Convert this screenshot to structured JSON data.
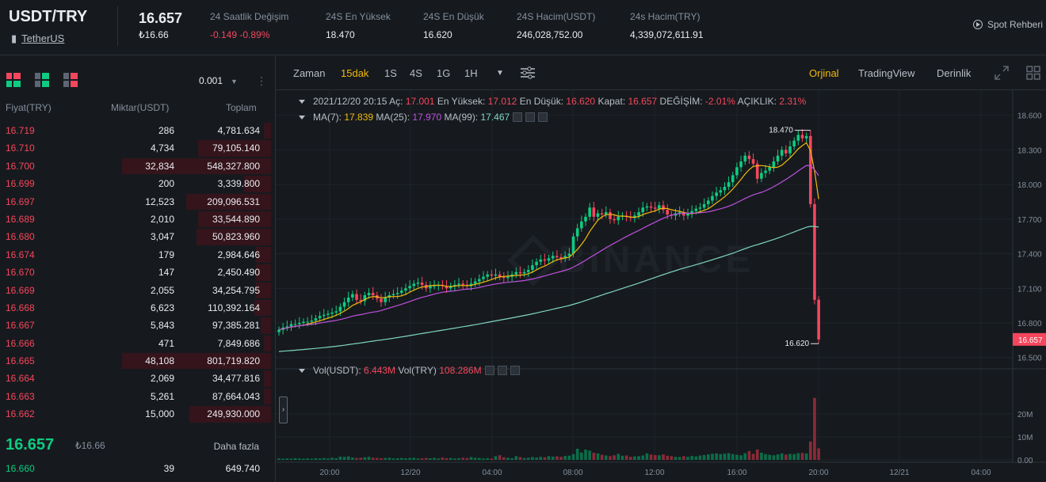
{
  "header": {
    "pair": "USDT/TRY",
    "coin_name": "TetherUS",
    "last_price": "16.657",
    "last_price_fiat": "₺16.66",
    "stats": [
      {
        "label": "24 Saatlik Değişim",
        "value": "-0.149 -0.89%",
        "color": "#f6465d"
      },
      {
        "label": "24S En Yüksek",
        "value": "18.470"
      },
      {
        "label": "24S En Düşük",
        "value": "16.620"
      },
      {
        "label": "24S Hacim(USDT)",
        "value": "246,028,752.00"
      },
      {
        "label": "24s Hacim(TRY)",
        "value": "4,339,072,611.91"
      }
    ],
    "guide_label": "Spot Rehberi"
  },
  "orderbook": {
    "tick_size": "0.001",
    "col_price": "Fiyat(TRY)",
    "col_amount": "Miktar(USDT)",
    "col_total": "Toplam",
    "asks": [
      {
        "price": "16.719",
        "amount": "286",
        "total": "4,781.634",
        "depth": 0.05
      },
      {
        "price": "16.710",
        "amount": "4,734",
        "total": "79,105.140",
        "depth": 0.49
      },
      {
        "price": "16.700",
        "amount": "32,834",
        "total": "548,327.800",
        "depth": 1.0
      },
      {
        "price": "16.699",
        "amount": "200",
        "total": "3,339.800",
        "depth": 0.18
      },
      {
        "price": "16.697",
        "amount": "12,523",
        "total": "209,096.531",
        "depth": 0.57
      },
      {
        "price": "16.689",
        "amount": "2,010",
        "total": "33,544.890",
        "depth": 0.49
      },
      {
        "price": "16.680",
        "amount": "3,047",
        "total": "50,823.960",
        "depth": 0.5
      },
      {
        "price": "16.674",
        "amount": "179",
        "total": "2,984.646",
        "depth": 0.1
      },
      {
        "price": "16.670",
        "amount": "147",
        "total": "2,450.490",
        "depth": 0.1
      },
      {
        "price": "16.669",
        "amount": "2,055",
        "total": "34,254.795",
        "depth": 0.1
      },
      {
        "price": "16.668",
        "amount": "6,623",
        "total": "110,392.164",
        "depth": 0.11
      },
      {
        "price": "16.667",
        "amount": "5,843",
        "total": "97,385.281",
        "depth": 0.07
      },
      {
        "price": "16.666",
        "amount": "471",
        "total": "7,849.686",
        "depth": 0.05
      },
      {
        "price": "16.665",
        "amount": "48,108",
        "total": "801,719.820",
        "depth": 1.0
      },
      {
        "price": "16.664",
        "amount": "2,069",
        "total": "34,477.816",
        "depth": 0.05
      },
      {
        "price": "16.663",
        "amount": "5,261",
        "total": "87,664.043",
        "depth": 0.05
      },
      {
        "price": "16.662",
        "amount": "15,000",
        "total": "249,930.000",
        "depth": 0.55
      }
    ],
    "last_price": "16.657",
    "last_price_fiat": "₺16.66",
    "more_label": "Daha fazla",
    "bid": {
      "price": "16.660",
      "amount": "39",
      "total": "649.740"
    }
  },
  "toolbar": {
    "time_label": "Zaman",
    "intervals": [
      "15dak",
      "1S",
      "4S",
      "1G",
      "1H"
    ],
    "active_interval": "15dak",
    "views": [
      "Orjinal",
      "TradingView",
      "Derinlik"
    ],
    "active_view": "Orjinal"
  },
  "legend": {
    "datetime": "2021/12/20 20:15",
    "open_label": "Aç:",
    "open": "17.001",
    "high_label": "En Yüksek:",
    "high": "17.012",
    "low_label": "En Düşük:",
    "low": "16.620",
    "close_label": "Kapat:",
    "close": "16.657",
    "change_label": "DEĞİŞİM:",
    "change": "-2.01%",
    "amp_label": "AÇIKLIK:",
    "amp": "2.31%",
    "ma7_label": "MA(7):",
    "ma7": "17.839",
    "ma25_label": "MA(25):",
    "ma25": "17.970",
    "ma99_label": "MA(99):",
    "ma99": "17.467",
    "vol_usdt_label": "Vol(USDT):",
    "vol_usdt": "6.443M",
    "vol_try_label": "Vol(TRY)",
    "vol_try": "108.286M"
  },
  "colors": {
    "up": "#0ecb81",
    "down": "#f6465d",
    "accent": "#f0b90b",
    "ma7": "#f0b90b",
    "ma25": "#c050e0",
    "ma99": "#7fd6c0"
  },
  "chart_data": {
    "type": "candlestick",
    "watermark": "BINANCE",
    "y_ticks": [
      "18.600",
      "18.300",
      "18.000",
      "17.700",
      "17.400",
      "17.100",
      "16.800",
      "16.500"
    ],
    "current_price_label": "16.657",
    "max_label": "18.470",
    "min_label": "16.620",
    "x_ticks": [
      "20:00",
      "12/20",
      "04:00",
      "08:00",
      "12:00",
      "16:00",
      "20:00",
      "12/21",
      "04:00"
    ],
    "vol_ticks": [
      "20M",
      "10M",
      "0.00"
    ],
    "ylim": [
      16.45,
      18.68
    ],
    "closes": [
      16.74,
      16.76,
      16.77,
      16.79,
      16.79,
      16.8,
      16.81,
      16.81,
      16.82,
      16.84,
      16.86,
      16.87,
      16.88,
      16.89,
      16.9,
      16.94,
      16.98,
      17.02,
      17.05,
      17.0,
      16.99,
      17.04,
      17.06,
      17.04,
      17.01,
      16.98,
      17.02,
      17.04,
      17.05,
      17.06,
      17.08,
      17.1,
      17.12,
      17.14,
      17.15,
      17.13,
      17.1,
      17.12,
      17.12,
      17.13,
      17.12,
      17.1,
      17.12,
      17.13,
      17.14,
      17.13,
      17.12,
      17.14,
      17.16,
      17.18,
      17.2,
      17.22,
      17.21,
      17.22,
      17.2,
      17.19,
      17.2,
      17.22,
      17.24,
      17.23,
      17.24,
      17.26,
      17.3,
      17.33,
      17.35,
      17.34,
      17.36,
      17.38,
      17.37,
      17.36,
      17.38,
      17.4,
      17.55,
      17.62,
      17.68,
      17.72,
      17.8,
      17.72,
      17.75,
      17.74,
      17.76,
      17.7,
      17.69,
      17.72,
      17.73,
      17.72,
      17.71,
      17.73,
      17.76,
      17.8,
      17.81,
      17.8,
      17.79,
      17.82,
      17.78,
      17.74,
      17.73,
      17.75,
      17.76,
      17.73,
      17.75,
      17.77,
      17.79,
      17.8,
      17.83,
      17.86,
      17.9,
      17.93,
      17.95,
      17.98,
      18.02,
      18.08,
      18.15,
      18.2,
      18.25,
      18.22,
      18.18,
      18.05,
      18.1,
      18.12,
      18.15,
      18.2,
      18.25,
      18.3,
      18.27,
      18.33,
      18.38,
      18.43,
      18.4,
      18.42,
      17.83,
      17.0,
      16.657
    ],
    "volumes_m": [
      0.6,
      0.5,
      0.6,
      0.5,
      0.7,
      0.6,
      0.5,
      0.6,
      0.5,
      0.7,
      0.6,
      0.8,
      0.6,
      0.9,
      0.7,
      1.4,
      1.3,
      1.5,
      1.0,
      0.8,
      0.9,
      1.1,
      1.3,
      0.9,
      0.8,
      0.7,
      0.8,
      0.9,
      0.6,
      0.7,
      0.8,
      0.7,
      0.8,
      0.9,
      0.6,
      0.7,
      0.8,
      0.7,
      0.9,
      0.6,
      1.0,
      0.7,
      0.8,
      0.6,
      0.7,
      0.9,
      0.8,
      1.2,
      0.9,
      0.8,
      0.6,
      0.7,
      0.6,
      1.6,
      2.0,
      1.1,
      0.9,
      0.7,
      1.6,
      1.2,
      0.8,
      0.9,
      1.2,
      1.0,
      1.3,
      1.1,
      1.6,
      1.4,
      1.5,
      1.3,
      1.7,
      1.8,
      2.5,
      4.8,
      3.2,
      4.5,
      4.0,
      3.1,
      2.8,
      2.2,
      1.9,
      1.6,
      2.0,
      2.6,
      1.8,
      1.9,
      1.3,
      1.5,
      1.6,
      1.9,
      2.8,
      2.3,
      2.1,
      2.0,
      2.4,
      1.8,
      1.6,
      1.3,
      1.2,
      1.6,
      1.3,
      1.7,
      1.5,
      1.9,
      2.1,
      2.4,
      2.6,
      2.8,
      2.5,
      2.7,
      2.9,
      2.5,
      2.2,
      2.0,
      2.9,
      3.8,
      2.6,
      4.5,
      3.1,
      2.5,
      2.2,
      2.0,
      2.4,
      2.8,
      2.3,
      2.6,
      2.5,
      2.9,
      3.0,
      2.8,
      8.0,
      27.0,
      5.0
    ]
  }
}
